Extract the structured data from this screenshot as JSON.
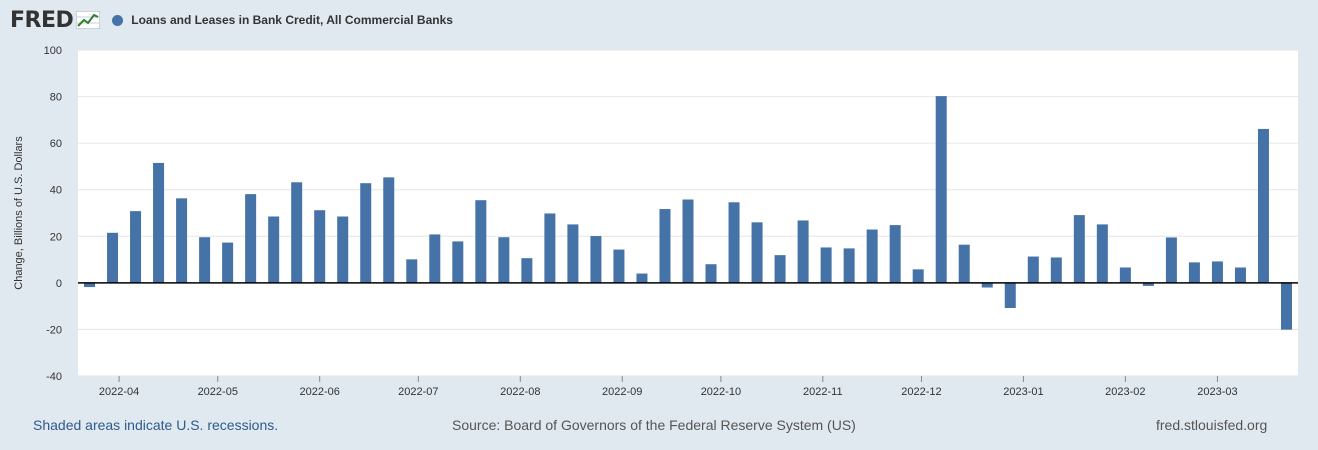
{
  "header": {
    "logo_text": "FRED",
    "series_label": "Loans and Leases in Bank Credit, All Commercial Banks"
  },
  "footer": {
    "recession_note": "Shaded areas indicate U.S. recessions.",
    "source": "Source: Board of Governors of the Federal Reserve System (US)",
    "site": "fred.stlouisfed.org"
  },
  "colors": {
    "bar": "#4572a7",
    "background": "#e1e9f0",
    "plot": "#ffffff",
    "grid": "#e6e6e6"
  },
  "chart_data": {
    "type": "bar",
    "title": "Loans and Leases in Bank Credit, All Commercial Banks",
    "ylabel": "Change, Billions of U.S. Dollars",
    "xlabel": "",
    "ylim": [
      -40,
      100
    ],
    "yticks": [
      -40,
      -20,
      0,
      20,
      40,
      60,
      80,
      100
    ],
    "grid": true,
    "x_tick_labels": [
      "2022-04",
      "2022-05",
      "2022-06",
      "2022-07",
      "2022-08",
      "2022-09",
      "2022-10",
      "2022-11",
      "2022-12",
      "2023-01",
      "2023-02",
      "2023-03"
    ],
    "x_tick_dates": [
      "2022-04-01",
      "2022-05-01",
      "2022-06-01",
      "2022-07-01",
      "2022-08-01",
      "2022-09-01",
      "2022-10-01",
      "2022-11-01",
      "2022-12-01",
      "2023-01-01",
      "2023-02-01",
      "2023-03-01"
    ],
    "x": [
      "2022-03-23",
      "2022-03-30",
      "2022-04-06",
      "2022-04-13",
      "2022-04-20",
      "2022-04-27",
      "2022-05-04",
      "2022-05-11",
      "2022-05-18",
      "2022-05-25",
      "2022-06-01",
      "2022-06-08",
      "2022-06-15",
      "2022-06-22",
      "2022-06-29",
      "2022-07-06",
      "2022-07-13",
      "2022-07-20",
      "2022-07-27",
      "2022-08-03",
      "2022-08-10",
      "2022-08-17",
      "2022-08-24",
      "2022-08-31",
      "2022-09-07",
      "2022-09-14",
      "2022-09-21",
      "2022-09-28",
      "2022-10-05",
      "2022-10-12",
      "2022-10-19",
      "2022-10-26",
      "2022-11-02",
      "2022-11-09",
      "2022-11-16",
      "2022-11-23",
      "2022-11-30",
      "2022-12-07",
      "2022-12-14",
      "2022-12-21",
      "2022-12-28",
      "2023-01-04",
      "2023-01-11",
      "2023-01-18",
      "2023-01-25",
      "2023-02-01",
      "2023-02-08",
      "2023-02-15",
      "2023-02-22",
      "2023-03-01",
      "2023-03-08",
      "2023-03-15",
      "2023-03-22"
    ],
    "series": [
      {
        "values": [
          -1.8,
          21.5,
          30.8,
          51.5,
          36.3,
          19.6,
          17.3,
          38.1,
          28.5,
          43.2,
          31.2,
          28.5,
          42.8,
          45.3,
          10.1,
          20.8,
          17.8,
          35.5,
          19.6,
          10.6,
          29.8,
          25.1,
          20.1,
          14.3,
          4.0,
          31.7,
          35.8,
          8.0,
          34.6,
          26.0,
          11.9,
          26.8,
          15.2,
          14.8,
          22.9,
          24.8,
          5.8,
          80.2,
          16.4,
          -2.0,
          -10.8,
          11.3,
          10.9,
          29.1,
          25.1,
          6.6,
          -1.3,
          19.5,
          8.8,
          9.2,
          6.6,
          66.1,
          -20.1
        ]
      }
    ]
  }
}
